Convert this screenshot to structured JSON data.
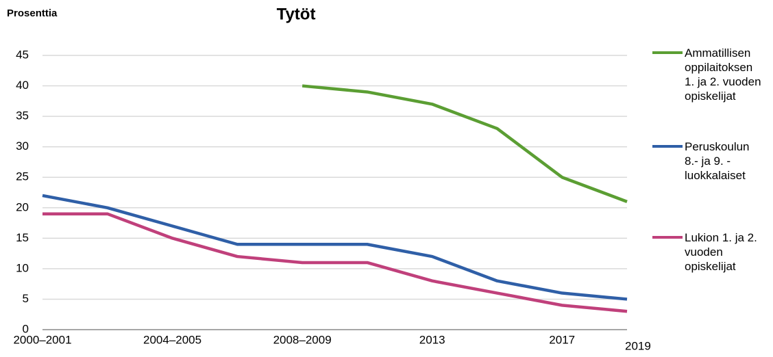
{
  "chart_data": {
    "type": "line",
    "title": "Tytöt",
    "y_label": "Prosenttia",
    "categories": [
      "2000–2001",
      null,
      "2004–2005",
      null,
      "2008–2009",
      null,
      "2013",
      null,
      "2017",
      "2019"
    ],
    "series": [
      {
        "name": "Ammatillisen oppilaitoksen 1. ja 2. vuoden opiskelijat",
        "color": "#5b9e33",
        "values": [
          null,
          null,
          null,
          null,
          40,
          39,
          37,
          33,
          25,
          21
        ]
      },
      {
        "name": "Peruskoulun 8.- ja 9. -luokkalaiset",
        "color": "#2f5fa7",
        "values": [
          22,
          20,
          17,
          14,
          14,
          14,
          12,
          8,
          6,
          5
        ]
      },
      {
        "name": "Lukion 1. ja 2. vuoden opiskelijat",
        "color": "#c0407b",
        "values": [
          19,
          19,
          15,
          12,
          11,
          11,
          8,
          6,
          4,
          3
        ]
      }
    ],
    "ylim": [
      0,
      45
    ],
    "yticks": [
      0,
      5,
      10,
      15,
      20,
      25,
      30,
      35,
      40,
      45
    ],
    "grid": true
  }
}
